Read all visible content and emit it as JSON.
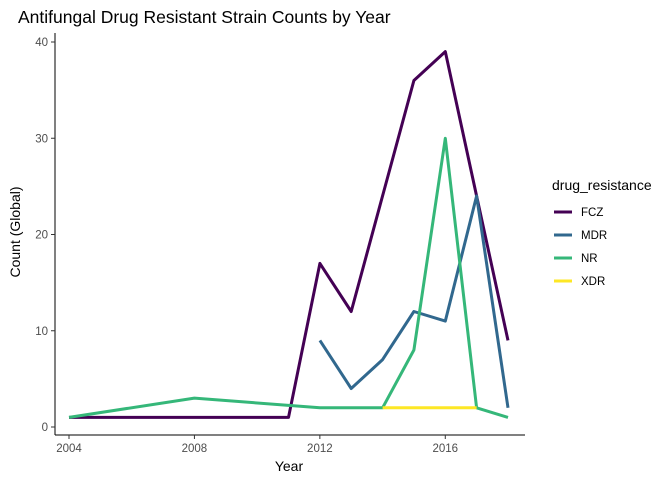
{
  "chart_data": {
    "type": "line",
    "title": "Antifungal Drug Resistant Strain Counts by Year",
    "xlabel": "Year",
    "ylabel": "Count (Global)",
    "xlim": [
      2004,
      2018
    ],
    "ylim": [
      0,
      40
    ],
    "x_ticks": [
      2004,
      2008,
      2012,
      2016
    ],
    "y_ticks": [
      0,
      10,
      20,
      30,
      40
    ],
    "grid": false,
    "legend": {
      "title": "drug_resistance",
      "position": "right"
    },
    "series": [
      {
        "name": "FCZ",
        "color": "#440154",
        "x": [
          2004,
          2008,
          2011,
          2012,
          2013,
          2015,
          2016,
          2017,
          2018
        ],
        "y": [
          1,
          1,
          1,
          17,
          12,
          36,
          39,
          24,
          9
        ]
      },
      {
        "name": "MDR",
        "color": "#31688E",
        "x": [
          2012,
          2013,
          2014,
          2015,
          2016,
          2017,
          2018
        ],
        "y": [
          9,
          4,
          7,
          12,
          11,
          24,
          2
        ]
      },
      {
        "name": "NR",
        "color": "#35B779",
        "x": [
          2004,
          2008,
          2012,
          2014,
          2015,
          2016,
          2017,
          2018
        ],
        "y": [
          1,
          3,
          2,
          2,
          8,
          30,
          2,
          1
        ]
      },
      {
        "name": "XDR",
        "color": "#FDE725",
        "x": [
          2014,
          2017
        ],
        "y": [
          2,
          2
        ]
      }
    ]
  }
}
